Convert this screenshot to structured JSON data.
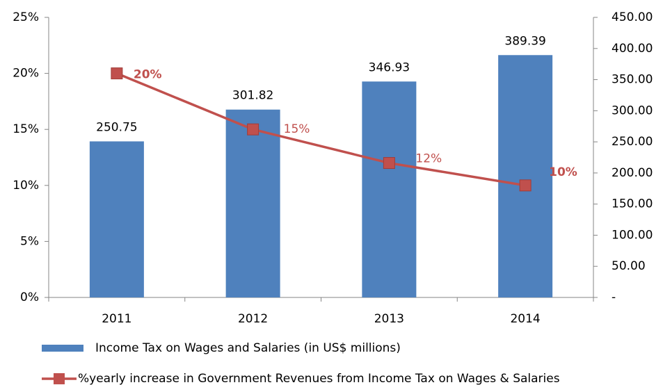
{
  "chart_data": {
    "type": "bar_line",
    "categories": [
      "2011",
      "2012",
      "2013",
      "2014"
    ],
    "series": [
      {
        "name": "Income Tax on Wages and Salaries (in US$ millions)",
        "type": "bar",
        "axis": "y2",
        "color": "#4f81bd",
        "values": [
          250.75,
          301.82,
          346.93,
          389.39
        ]
      },
      {
        "name": "%yearly increase in Government Revenues from Income Tax on Wages & Salaries",
        "type": "line",
        "axis": "y",
        "color": "#c0504d",
        "values": [
          20,
          15,
          12,
          10
        ],
        "value_labels": [
          "20%",
          "15%",
          "12%",
          "10%"
        ]
      }
    ],
    "ylim": [
      0,
      25
    ],
    "yticks": [
      {
        "value": 0,
        "label": "0%"
      },
      {
        "value": 5,
        "label": "5%"
      },
      {
        "value": 10,
        "label": "10%"
      },
      {
        "value": 15,
        "label": "15%"
      },
      {
        "value": 20,
        "label": "20%"
      },
      {
        "value": 25,
        "label": "25%"
      }
    ],
    "y2lim": [
      0,
      450
    ],
    "y2ticks": [
      {
        "value": 0,
        "label": "-"
      },
      {
        "value": 50,
        "label": "50.00"
      },
      {
        "value": 100,
        "label": "100.00"
      },
      {
        "value": 150,
        "label": "150.00"
      },
      {
        "value": 200,
        "label": "200.00"
      },
      {
        "value": 250,
        "label": "250.00"
      },
      {
        "value": 300,
        "label": "300.00"
      },
      {
        "value": 350,
        "label": "350.00"
      },
      {
        "value": 400,
        "label": "400.00"
      },
      {
        "value": 450,
        "label": "450.00"
      }
    ],
    "legend": "bottom"
  }
}
